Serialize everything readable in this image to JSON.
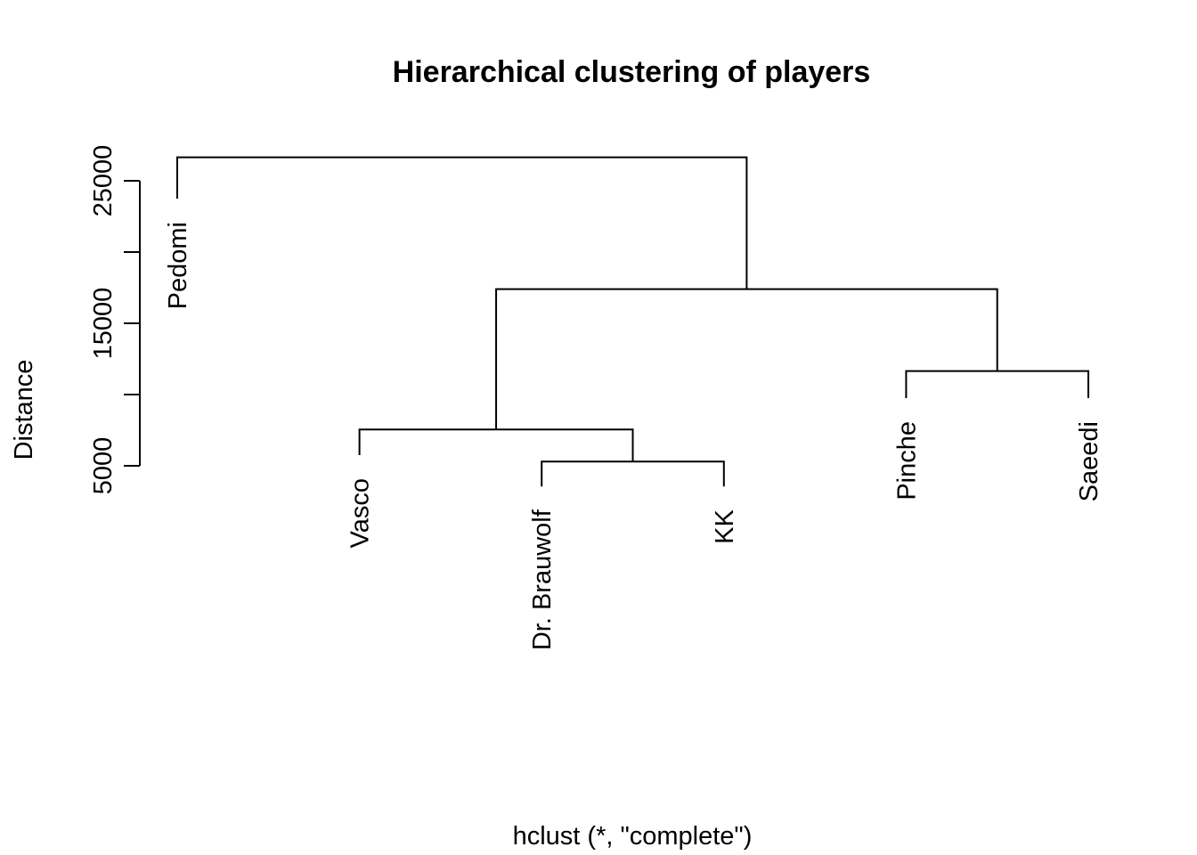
{
  "chart_data": {
    "type": "dendrogram",
    "title": "Hierarchical clustering of players",
    "xlabel": "hclust (*, \"complete\")",
    "ylabel": "Distance",
    "y_ticks": [
      5000,
      10000,
      15000,
      20000,
      25000
    ],
    "y_tick_labels": [
      "5000",
      "",
      "15000",
      "",
      "25000"
    ],
    "leaves": [
      {
        "id": "pedomi",
        "label": "Pedomi",
        "order": 0,
        "label_y": 23500
      },
      {
        "id": "vasco",
        "label": "Vasco",
        "order": 1,
        "label_y": 5500
      },
      {
        "id": "brauwolf",
        "label": "Dr. Brauwolf",
        "order": 2,
        "label_y": 3300
      },
      {
        "id": "kk",
        "label": "KK",
        "order": 3,
        "label_y": 3300
      },
      {
        "id": "pinche",
        "label": "Pinche",
        "order": 4,
        "label_y": 9500
      },
      {
        "id": "saeedi",
        "label": "Saeedi",
        "order": 5,
        "label_y": 9500
      }
    ],
    "merges": [
      {
        "id": "m1",
        "left": "brauwolf",
        "right": "kk",
        "height": 5300
      },
      {
        "id": "m2",
        "left": "vasco",
        "right": "m1",
        "height": 7550
      },
      {
        "id": "m3",
        "left": "pinche",
        "right": "saeedi",
        "height": 11650
      },
      {
        "id": "m4",
        "left": "m2",
        "right": "m3",
        "height": 17400
      },
      {
        "id": "m5",
        "left": "pedomi",
        "right": "m4",
        "height": 26650
      }
    ],
    "ylim": [
      5000,
      27500
    ],
    "grid": false,
    "legend": "none"
  }
}
